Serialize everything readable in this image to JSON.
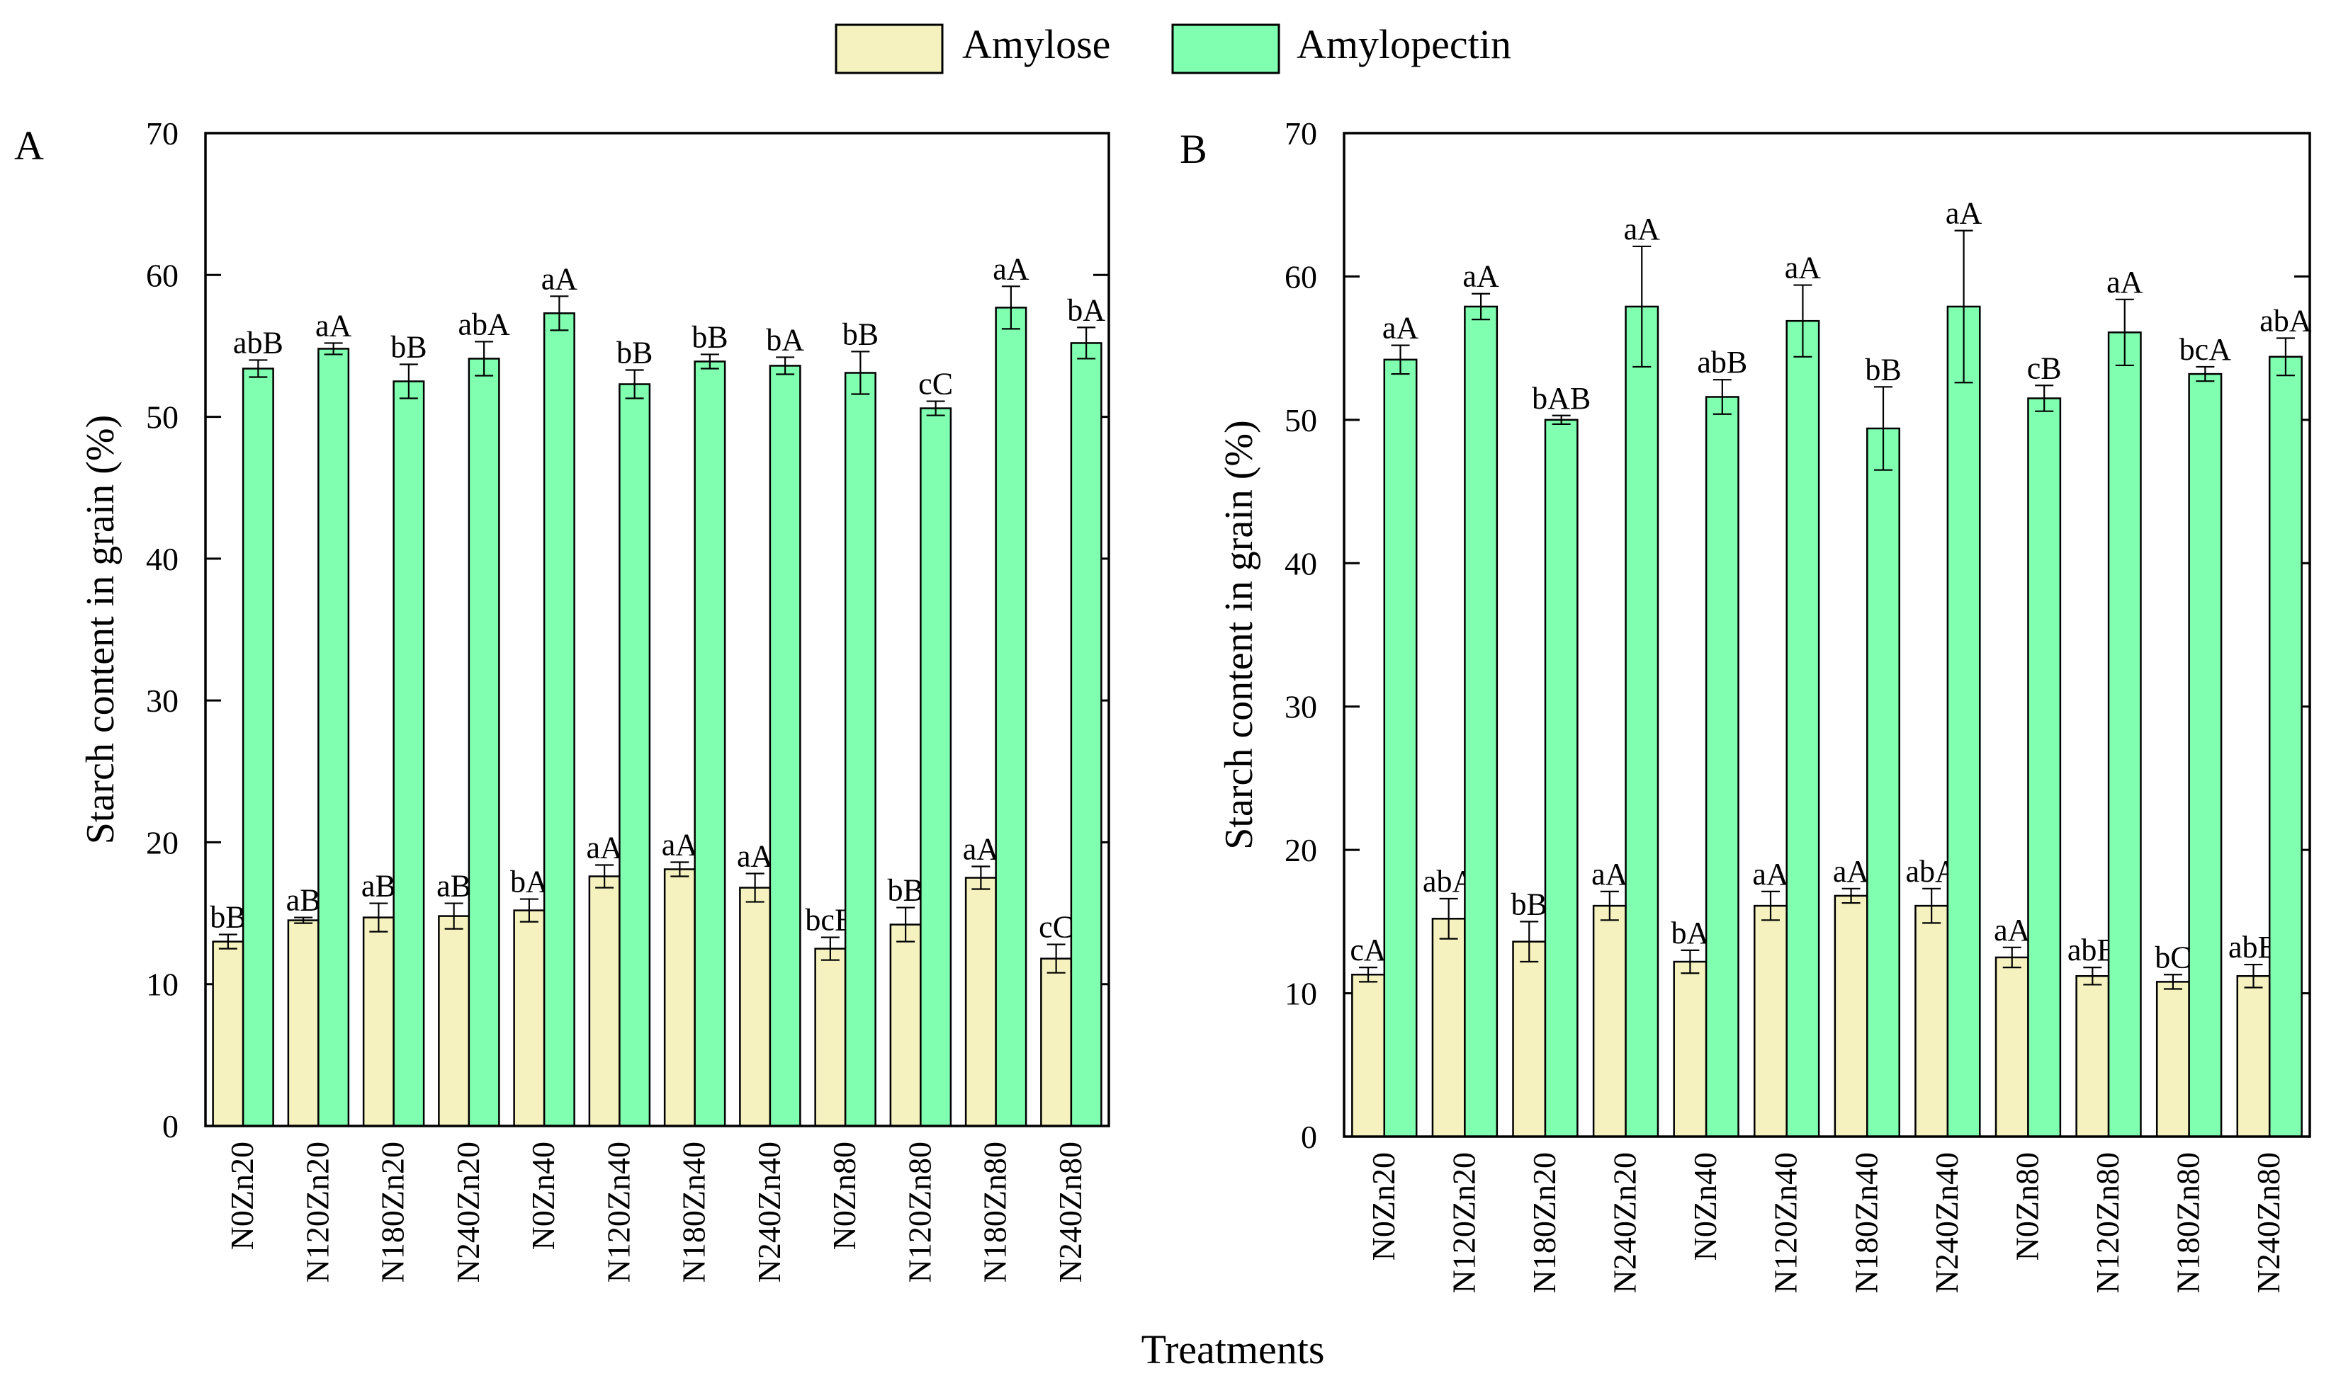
{
  "legend": {
    "items": [
      {
        "label": "Amylose",
        "color": "#F5F2BF"
      },
      {
        "label": "Amylopectin",
        "color": "#80FFB0"
      }
    ]
  },
  "x_axis_title": "Treatments",
  "chart_data": [
    {
      "type": "bar",
      "panel_label": "A",
      "ylabel": "Starch content in grain (%)",
      "xlabel": "Treatments",
      "ylim": [
        0,
        70
      ],
      "yticks": [
        0,
        10,
        20,
        30,
        40,
        50,
        60,
        70
      ],
      "categories": [
        "N0Zn20",
        "N120Zn20",
        "N180Zn20",
        "N240Zn20",
        "N0Zn40",
        "N120Zn40",
        "N180Zn40",
        "N240Zn40",
        "N0Zn80",
        "N120Zn80",
        "N180Zn80",
        "N240Zn80"
      ],
      "series": [
        {
          "name": "Amylose",
          "color": "#F5F2BF",
          "values": [
            13.0,
            14.5,
            14.7,
            14.8,
            15.2,
            17.6,
            18.1,
            16.8,
            12.5,
            14.2,
            17.5,
            11.8
          ],
          "errors": [
            0.5,
            0.2,
            1.0,
            0.9,
            0.8,
            0.8,
            0.5,
            1.0,
            0.8,
            1.2,
            0.8,
            1.0
          ],
          "labels": [
            "bB",
            "aB",
            "aB",
            "aB",
            "bA",
            "aA",
            "aA",
            "aA",
            "bcB",
            "bB",
            "aA",
            "cC"
          ]
        },
        {
          "name": "Amylopectin",
          "color": "#80FFB0",
          "values": [
            53.4,
            54.8,
            52.5,
            54.1,
            57.3,
            52.3,
            53.9,
            53.6,
            53.1,
            50.6,
            57.7,
            55.2
          ],
          "errors": [
            0.6,
            0.4,
            1.2,
            1.2,
            1.2,
            1.0,
            0.5,
            0.6,
            1.5,
            0.5,
            1.5,
            1.1
          ],
          "labels": [
            "abB",
            "aA",
            "bB",
            "abA",
            "aA",
            "bB",
            "bB",
            "bA",
            "bB",
            "cC",
            "aA",
            "bA"
          ]
        }
      ]
    },
    {
      "type": "bar",
      "panel_label": "B",
      "ylabel": "Starch content in grain (%)",
      "xlabel": "Treatments",
      "ylim": [
        0,
        70
      ],
      "yticks": [
        0,
        10,
        20,
        30,
        40,
        50,
        60,
        70
      ],
      "categories": [
        "N0Zn20",
        "N120Zn20",
        "N180Zn20",
        "N240Zn20",
        "N0Zn40",
        "N120Zn40",
        "N180Zn40",
        "N240Zn40",
        "N0Zn80",
        "N120Zn80",
        "N180Zn80",
        "N240Zn80"
      ],
      "series": [
        {
          "name": "Amylose",
          "color": "#F5F2BF",
          "values": [
            11.3,
            15.2,
            13.6,
            16.1,
            12.2,
            16.1,
            16.8,
            16.1,
            12.5,
            11.2,
            10.8,
            11.2
          ],
          "errors": [
            0.5,
            1.4,
            1.4,
            1.0,
            0.8,
            1.0,
            0.5,
            1.2,
            0.7,
            0.6,
            0.5,
            0.8
          ],
          "labels": [
            "cA",
            "abA",
            "bB",
            "aA",
            "bA",
            "aA",
            "aA",
            "abA",
            "aA",
            "abB",
            "bC",
            "abB"
          ]
        },
        {
          "name": "Amylopectin",
          "color": "#80FFB0",
          "values": [
            54.2,
            57.9,
            50.0,
            57.9,
            51.6,
            56.9,
            49.4,
            57.9,
            51.5,
            56.1,
            53.2,
            54.4
          ],
          "errors": [
            1.0,
            0.9,
            0.3,
            4.2,
            1.2,
            2.5,
            2.9,
            5.3,
            0.9,
            2.3,
            0.5,
            1.3
          ],
          "labels": [
            "aA",
            "aA",
            "bAB",
            "aA",
            "abB",
            "aA",
            "bB",
            "aA",
            "cB",
            "aA",
            "bcA",
            "abA"
          ]
        }
      ]
    }
  ]
}
